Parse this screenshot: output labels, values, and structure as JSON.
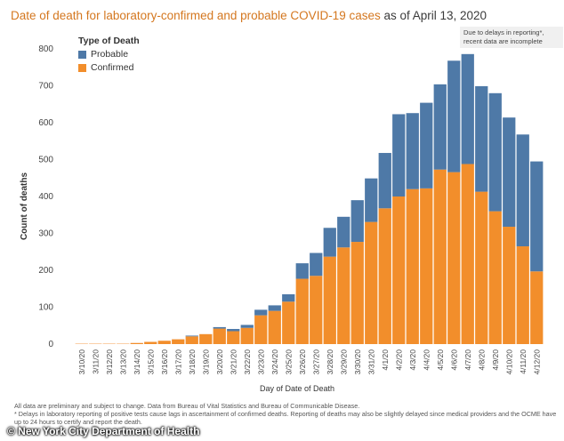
{
  "title_main": "Date of death for laboratory-confirmed and probable COVID-19 cases",
  "title_suffix": " as of April 13, 2020",
  "note": "Due to delays in reporting*, recent data are incomplete",
  "legend_title": "Type of Death",
  "footnotes": [
    "All data are preliminary and subject to change. Data from Bureau of Vital Statistics and Bureau of Communicable Disease.",
    "* Delays in laboratory reporting of positive tests cause lags in ascertainment of confirmed deaths. Reporting of deaths may also be slightly delayed since medical providers and the OCME have up to 24 hours to certify and report the death."
  ],
  "watermark": "© New York City Department of Health",
  "chart_data": {
    "type": "bar",
    "stacked": true,
    "xlabel": "Day of Date of Death",
    "ylabel": "Count of deaths",
    "ylim": [
      0,
      800
    ],
    "yticks": [
      0,
      100,
      200,
      300,
      400,
      500,
      600,
      700,
      800
    ],
    "grid": false,
    "legend_position": "top-left",
    "colors": {
      "Confirmed": "#f28e2b",
      "Probable": "#4e79a7"
    },
    "categories": [
      "3/10/20",
      "3/11/20",
      "3/12/20",
      "3/13/20",
      "3/14/20",
      "3/15/20",
      "3/16/20",
      "3/17/20",
      "3/18/20",
      "3/19/20",
      "3/20/20",
      "3/21/20",
      "3/22/20",
      "3/23/20",
      "3/24/20",
      "3/25/20",
      "3/26/20",
      "3/27/20",
      "3/28/20",
      "3/29/20",
      "3/30/20",
      "3/31/20",
      "4/1/20",
      "4/2/20",
      "4/3/20",
      "4/4/20",
      "4/5/20",
      "4/6/20",
      "4/7/20",
      "4/8/20",
      "4/9/20",
      "4/10/20",
      "4/11/20",
      "4/12/20"
    ],
    "series": [
      {
        "name": "Confirmed",
        "values": [
          1,
          1,
          1,
          1,
          3,
          6,
          9,
          13,
          21,
          27,
          42,
          35,
          44,
          78,
          90,
          115,
          177,
          185,
          237,
          262,
          277,
          331,
          368,
          400,
          420,
          422,
          473,
          466,
          488,
          413,
          360,
          318,
          265,
          197
        ]
      },
      {
        "name": "Probable",
        "values": [
          0,
          0,
          0,
          0,
          0,
          0,
          0,
          0,
          2,
          0,
          4,
          6,
          8,
          15,
          15,
          20,
          42,
          62,
          78,
          83,
          113,
          118,
          150,
          223,
          206,
          232,
          231,
          302,
          298,
          286,
          320,
          296,
          303,
          298
        ]
      }
    ]
  }
}
